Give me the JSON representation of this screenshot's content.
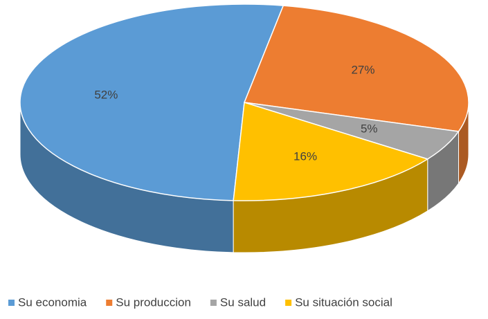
{
  "chart_data": {
    "type": "pie",
    "categories": [
      "Su economia",
      "Su produccion",
      "Su salud",
      "Su situación social"
    ],
    "values": [
      52,
      27,
      5,
      16
    ],
    "value_labels": [
      "52%",
      "27%",
      "5%",
      "16%"
    ],
    "colors": [
      "#5b9bd5",
      "#ed7d31",
      "#a5a5a5",
      "#ffc000"
    ],
    "legend": "bottom"
  }
}
